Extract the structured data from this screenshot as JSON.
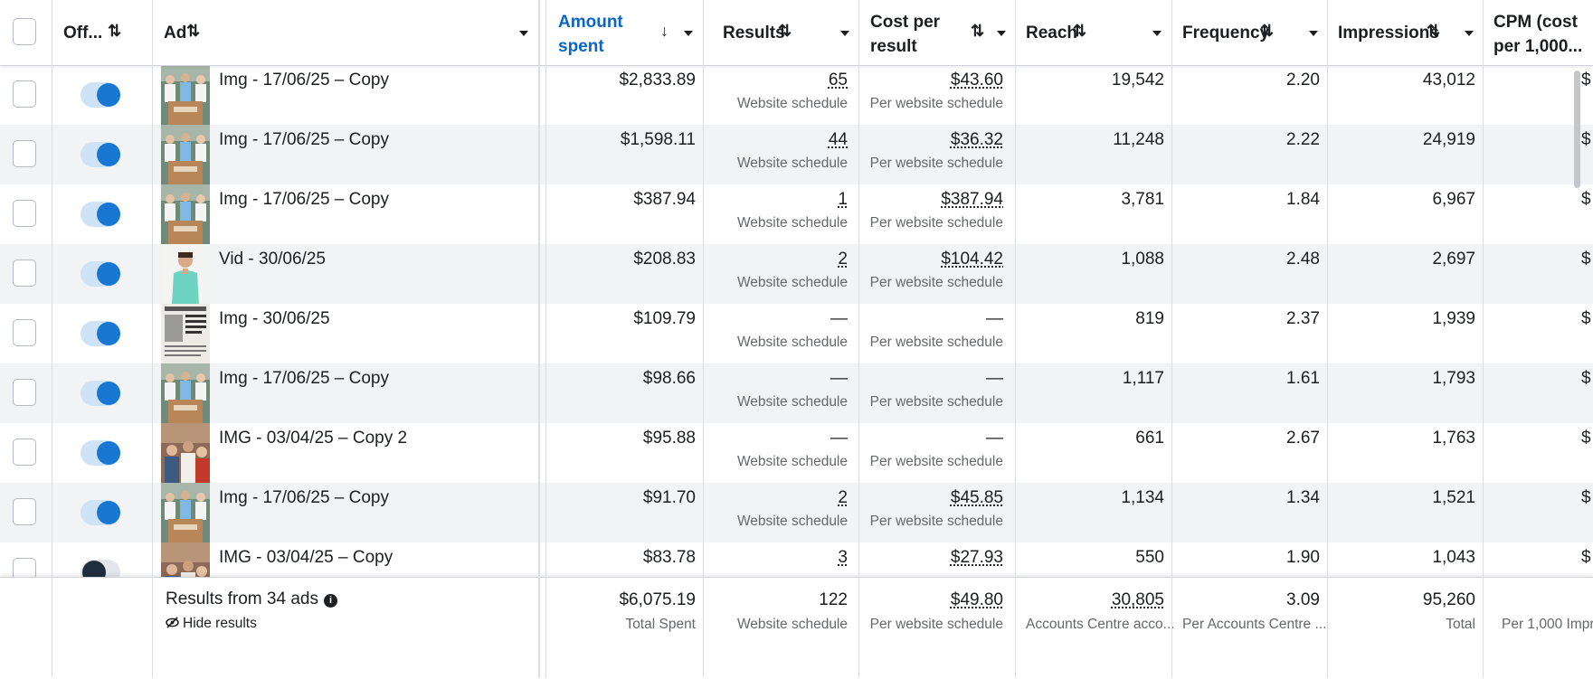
{
  "header": {
    "off_label": "Off...",
    "ad_label": "Ad",
    "amount_spent_line1": "Amount",
    "amount_spent_line2": "spent",
    "results_label": "Results",
    "cost_per_result_line1": "Cost per",
    "cost_per_result_line2": "result",
    "reach_label": "Reach",
    "frequency_label": "Frequency",
    "impressions_label": "Impressions",
    "cpm_line1": "CPM (cost",
    "cpm_line2": "per 1,000...",
    "sort_icon": "⇅",
    "sort_desc_icon": "↓"
  },
  "rows": [
    {
      "toggle": "on",
      "thumb": "group-photo",
      "name": "Img - 17/06/25 – Copy",
      "spent": "$2,833.89",
      "results": "65",
      "results_sub": "Website schedule",
      "cost": "$43.60",
      "cost_sub": "Per website schedule",
      "reach": "19,542",
      "frequency": "2.20",
      "impressions": "43,012",
      "cpm": "$"
    },
    {
      "toggle": "on",
      "thumb": "group-photo",
      "name": "Img - 17/06/25 – Copy",
      "spent": "$1,598.11",
      "results": "44",
      "results_sub": "Website schedule",
      "cost": "$36.32",
      "cost_sub": "Per website schedule",
      "reach": "11,248",
      "frequency": "2.22",
      "impressions": "24,919",
      "cpm": "$"
    },
    {
      "toggle": "on",
      "thumb": "group-photo",
      "name": "Img - 17/06/25 – Copy",
      "spent": "$387.94",
      "results": "1",
      "results_sub": "Website schedule",
      "cost": "$387.94",
      "cost_sub": "Per website schedule",
      "reach": "3,781",
      "frequency": "1.84",
      "impressions": "6,967",
      "cpm": "$"
    },
    {
      "toggle": "on",
      "thumb": "person-photo",
      "name": "Vid - 30/06/25",
      "spent": "$208.83",
      "results": "2",
      "results_sub": "Website schedule",
      "cost": "$104.42",
      "cost_sub": "Per website schedule",
      "reach": "1,088",
      "frequency": "2.48",
      "impressions": "2,697",
      "cpm": "$"
    },
    {
      "toggle": "on",
      "thumb": "newspaper-photo",
      "name": "Img - 30/06/25",
      "spent": "$109.79",
      "results": "—",
      "results_sub": "Website schedule",
      "cost": "—",
      "cost_sub": "Per website schedule",
      "reach": "819",
      "frequency": "2.37",
      "impressions": "1,939",
      "cpm": "$"
    },
    {
      "toggle": "on",
      "thumb": "group-photo",
      "name": "Img - 17/06/25 – Copy",
      "spent": "$98.66",
      "results": "—",
      "results_sub": "Website schedule",
      "cost": "—",
      "cost_sub": "Per website schedule",
      "reach": "1,117",
      "frequency": "1.61",
      "impressions": "1,793",
      "cpm": "$"
    },
    {
      "toggle": "on",
      "thumb": "crowd-photo",
      "name": "IMG - 03/04/25 – Copy 2",
      "spent": "$95.88",
      "results": "—",
      "results_sub": "Website schedule",
      "cost": "—",
      "cost_sub": "Per website schedule",
      "reach": "661",
      "frequency": "2.67",
      "impressions": "1,763",
      "cpm": "$"
    },
    {
      "toggle": "on",
      "thumb": "group-photo",
      "name": "Img - 17/06/25 – Copy",
      "spent": "$91.70",
      "results": "2",
      "results_sub": "Website schedule",
      "cost": "$45.85",
      "cost_sub": "Per website schedule",
      "reach": "1,134",
      "frequency": "1.34",
      "impressions": "1,521",
      "cpm": "$"
    },
    {
      "toggle": "off",
      "thumb": "crowd-photo",
      "name": "IMG - 03/04/25 – Copy",
      "spent": "$83.78",
      "results": "3",
      "results_sub": "",
      "cost": "$27.93",
      "cost_sub": "",
      "reach": "550",
      "frequency": "1.90",
      "impressions": "1,043",
      "cpm": "$"
    }
  ],
  "footer": {
    "title": "Results from 34 ads",
    "info_icon": "i",
    "hide_label": "Hide results",
    "spent": "$6,075.19",
    "spent_sub": "Total Spent",
    "results": "122",
    "results_sub": "Website schedule",
    "cost": "$49.80",
    "cost_sub": "Per website schedule",
    "reach": "30,805",
    "reach_sub": "Accounts Centre acco...",
    "frequency": "3.09",
    "frequency_sub": "Per Accounts Centre ...",
    "impressions": "95,260",
    "impressions_sub": "Total",
    "cpm_sub": "Per 1,000 Impr"
  },
  "colors": {
    "accent": "#0a66c2",
    "toggle_on": "#1877d2",
    "alt_row": "#f2f3f5"
  }
}
